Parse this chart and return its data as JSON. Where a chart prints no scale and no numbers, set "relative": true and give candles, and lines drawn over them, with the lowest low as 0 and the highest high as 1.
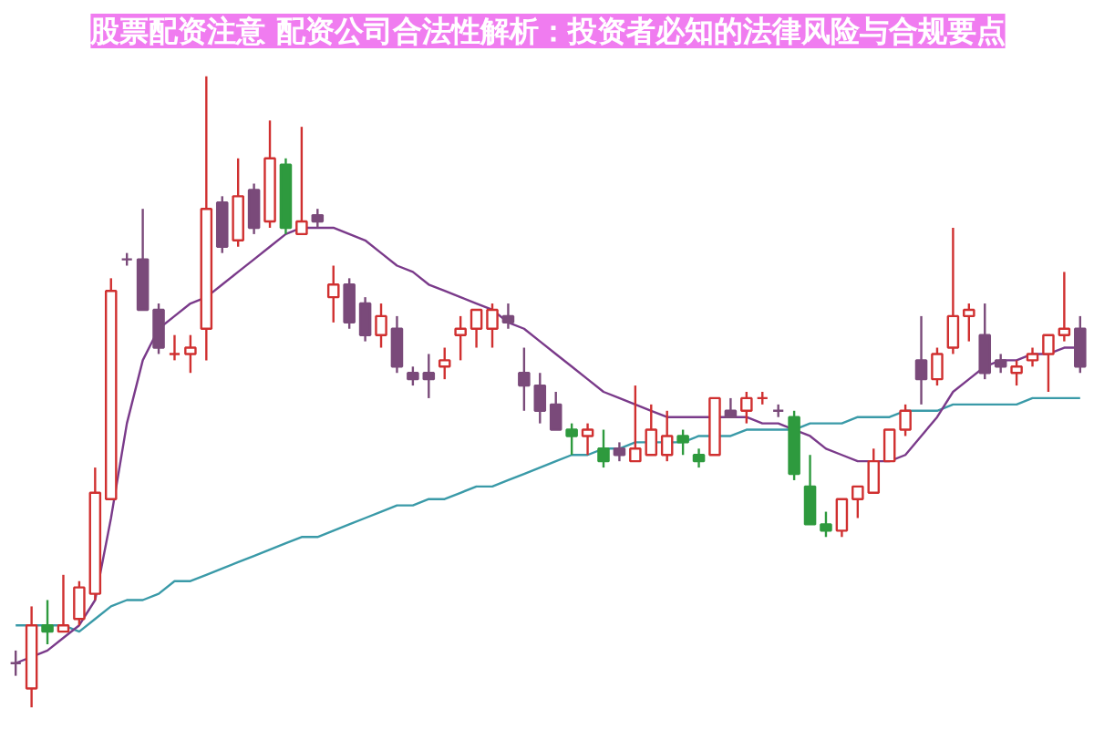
{
  "chart_data": {
    "type": "candlestick",
    "title": "股票配资注意 配资公司合法性解析：投资者必知的法律风险与合规要点",
    "relative": true,
    "categories": [
      null,
      null,
      null,
      null,
      null,
      null,
      null,
      null,
      null,
      null,
      null,
      null,
      null,
      null,
      null,
      null,
      null,
      null,
      null,
      null,
      null,
      null,
      null,
      null,
      null,
      null,
      null,
      null,
      null,
      null,
      null,
      null,
      null,
      null,
      null,
      null,
      null,
      null,
      null,
      null,
      null,
      null,
      null,
      null,
      null,
      null,
      null,
      null,
      null,
      null,
      null,
      null,
      null,
      null,
      null,
      null,
      null,
      null,
      null,
      null,
      null,
      null,
      null,
      null,
      null,
      null,
      null,
      null
    ],
    "ohlc": [
      [
        0.07,
        0.09,
        0.05,
        0.07
      ],
      [
        0.03,
        0.16,
        0,
        0.13
      ],
      [
        0.13,
        0.17,
        0.1,
        0.12
      ],
      [
        0.12,
        0.21,
        0.12,
        0.13
      ],
      [
        0.14,
        0.2,
        0.13,
        0.19
      ],
      [
        0.18,
        0.38,
        0.17,
        0.34
      ],
      [
        0.33,
        0.68,
        0.33,
        0.66
      ],
      [
        0.71,
        0.72,
        0.7,
        0.71
      ],
      [
        0.71,
        0.79,
        0.63,
        0.63
      ],
      [
        0.63,
        0.64,
        0.56,
        0.57
      ],
      [
        0.56,
        0.59,
        0.55,
        0.56
      ],
      [
        0.56,
        0.59,
        0.53,
        0.57
      ],
      [
        0.6,
        1,
        0.55,
        0.79
      ],
      [
        0.8,
        0.81,
        0.72,
        0.73
      ],
      [
        0.74,
        0.87,
        0.73,
        0.81
      ],
      [
        0.82,
        0.83,
        0.75,
        0.76
      ],
      [
        0.77,
        0.93,
        0.76,
        0.87
      ],
      [
        0.86,
        0.87,
        0.75,
        0.76
      ],
      [
        0.75,
        0.92,
        0.75,
        0.77
      ],
      [
        0.78,
        0.79,
        0.76,
        0.77
      ],
      [
        0.65,
        0.7,
        0.61,
        0.67
      ],
      [
        0.67,
        0.68,
        0.6,
        0.61
      ],
      [
        0.64,
        0.65,
        0.58,
        0.59
      ],
      [
        0.59,
        0.64,
        0.57,
        0.62
      ],
      [
        0.6,
        0.62,
        0.53,
        0.54
      ],
      [
        0.53,
        0.54,
        0.51,
        0.52
      ],
      [
        0.53,
        0.56,
        0.49,
        0.52
      ],
      [
        0.54,
        0.57,
        0.52,
        0.55
      ],
      [
        0.59,
        0.62,
        0.55,
        0.6
      ],
      [
        0.6,
        0.63,
        0.57,
        0.63
      ],
      [
        0.6,
        0.64,
        0.57,
        0.63
      ],
      [
        0.62,
        0.64,
        0.6,
        0.61
      ],
      [
        0.53,
        0.57,
        0.47,
        0.51
      ],
      [
        0.51,
        0.53,
        0.45,
        0.47
      ],
      [
        0.48,
        0.5,
        0.44,
        0.44
      ],
      [
        0.44,
        0.45,
        0.4,
        0.43
      ],
      [
        0.43,
        0.45,
        0.4,
        0.44
      ],
      [
        0.41,
        0.44,
        0.38,
        0.39
      ],
      [
        0.41,
        0.42,
        0.39,
        0.4
      ],
      [
        0.39,
        0.51,
        0.39,
        0.41
      ],
      [
        0.4,
        0.48,
        0.4,
        0.44
      ],
      [
        0.4,
        0.47,
        0.39,
        0.43
      ],
      [
        0.43,
        0.44,
        0.4,
        0.42
      ],
      [
        0.4,
        0.41,
        0.38,
        0.39
      ],
      [
        0.4,
        0.49,
        0.4,
        0.49
      ],
      [
        0.47,
        0.49,
        0.46,
        0.46
      ],
      [
        0.47,
        0.5,
        0.45,
        0.49
      ],
      [
        0.49,
        0.5,
        0.48,
        0.49
      ],
      [
        0.47,
        0.48,
        0.46,
        0.47
      ],
      [
        0.46,
        0.47,
        0.36,
        0.37
      ],
      [
        0.35,
        0.4,
        0.29,
        0.29
      ],
      [
        0.29,
        0.31,
        0.27,
        0.28
      ],
      [
        0.28,
        0.33,
        0.27,
        0.33
      ],
      [
        0.33,
        0.35,
        0.3,
        0.35
      ],
      [
        0.34,
        0.41,
        0.34,
        0.39
      ],
      [
        0.39,
        0.44,
        0.39,
        0.44
      ],
      [
        0.44,
        0.48,
        0.43,
        0.47
      ],
      [
        0.55,
        0.62,
        0.48,
        0.52
      ],
      [
        0.52,
        0.57,
        0.51,
        0.56
      ],
      [
        0.57,
        0.76,
        0.56,
        0.62
      ],
      [
        0.62,
        0.64,
        0.58,
        0.63
      ],
      [
        0.59,
        0.64,
        0.52,
        0.53
      ],
      [
        0.55,
        0.56,
        0.53,
        0.54
      ],
      [
        0.53,
        0.55,
        0.51,
        0.54
      ],
      [
        0.55,
        0.57,
        0.54,
        0.56
      ],
      [
        0.56,
        0.59,
        0.5,
        0.59
      ],
      [
        0.59,
        0.69,
        0.58,
        0.6
      ],
      [
        0.6,
        0.62,
        0.53,
        0.54
      ]
    ],
    "colors": [
      "#7a4a7a",
      "#d03030",
      "#2e9a3e",
      "#d03030",
      "#d03030",
      "#d03030",
      "#d03030",
      "#7a4a7a",
      "#7a4a7a",
      "#7a4a7a",
      "#d03030",
      "#d03030",
      "#d03030",
      "#7a4a7a",
      "#d03030",
      "#7a4a7a",
      "#d03030",
      "#2e9a3e",
      "#d03030",
      "#7a4a7a",
      "#d03030",
      "#7a4a7a",
      "#7a4a7a",
      "#d03030",
      "#7a4a7a",
      "#7a4a7a",
      "#7a4a7a",
      "#d03030",
      "#d03030",
      "#d03030",
      "#d03030",
      "#7a4a7a",
      "#7a4a7a",
      "#7a4a7a",
      "#7a4a7a",
      "#2e9a3e",
      "#d03030",
      "#2e9a3e",
      "#7a4a7a",
      "#d03030",
      "#d03030",
      "#d03030",
      "#2e9a3e",
      "#2e9a3e",
      "#d03030",
      "#7a4a7a",
      "#d03030",
      "#d03030",
      "#7a4a7a",
      "#2e9a3e",
      "#2e9a3e",
      "#2e9a3e",
      "#d03030",
      "#d03030",
      "#d03030",
      "#d03030",
      "#d03030",
      "#7a4a7a",
      "#d03030",
      "#d03030",
      "#d03030",
      "#7a4a7a",
      "#7a4a7a",
      "#d03030",
      "#d03030",
      "#d03030",
      "#d03030",
      "#7a4a7a"
    ],
    "series": [
      {
        "type": "line",
        "color": "#3a9aa8",
        "values": [
          0.13,
          0.13,
          0.13,
          0.13,
          0.12,
          0.14,
          0.16,
          0.17,
          0.17,
          0.18,
          0.2,
          0.2,
          0.21,
          0.22,
          0.23,
          0.24,
          0.25,
          0.26,
          0.27,
          0.27,
          0.28,
          0.29,
          0.3,
          0.31,
          0.32,
          0.32,
          0.33,
          0.33,
          0.34,
          0.35,
          0.35,
          0.36,
          0.37,
          0.38,
          0.39,
          0.4,
          0.4,
          0.41,
          0.41,
          0.42,
          0.42,
          0.42,
          0.42,
          0.43,
          0.43,
          0.43,
          0.44,
          0.44,
          0.44,
          0.44,
          0.45,
          0.45,
          0.45,
          0.46,
          0.46,
          0.46,
          0.47,
          0.47,
          0.47,
          0.48,
          0.48,
          0.48,
          0.48,
          0.48,
          0.49,
          0.49,
          0.49,
          0.49
        ]
      },
      {
        "type": "line",
        "color": "#7a3a8a",
        "values": [
          0.07,
          0.08,
          0.09,
          0.11,
          0.13,
          0.17,
          0.3,
          0.45,
          0.55,
          0.6,
          0.62,
          0.64,
          0.65,
          0.67,
          0.69,
          0.71,
          0.73,
          0.75,
          0.76,
          0.76,
          0.76,
          0.75,
          0.74,
          0.72,
          0.7,
          0.69,
          0.67,
          0.66,
          0.65,
          0.64,
          0.63,
          0.61,
          0.6,
          0.58,
          0.56,
          0.54,
          0.52,
          0.5,
          0.49,
          0.48,
          0.47,
          0.46,
          0.46,
          0.46,
          0.46,
          0.46,
          0.46,
          0.45,
          0.45,
          0.44,
          0.43,
          0.41,
          0.4,
          0.39,
          0.39,
          0.39,
          0.4,
          0.43,
          0.46,
          0.5,
          0.52,
          0.54,
          0.55,
          0.55,
          0.56,
          0.56,
          0.57,
          0.57
        ]
      }
    ]
  }
}
